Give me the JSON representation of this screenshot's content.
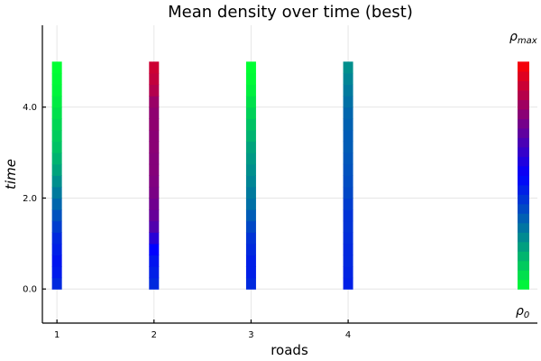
{
  "chart_data": {
    "type": "heatmap",
    "title": "Mean density over time (best)",
    "xlabel": "roads",
    "ylabel": "time",
    "x_ticks": [
      "1",
      "2",
      "3",
      "4"
    ],
    "y_ticks": [
      "0.0",
      "2.0",
      "4.0"
    ],
    "ylim": [
      -0.75,
      5.8
    ],
    "xlim": [
      0.85,
      5.95
    ],
    "time_range": [
      0,
      5
    ],
    "grid": true,
    "colorbar": {
      "min_label": "ρ",
      "min_sub": "0",
      "max_label": "ρ",
      "max_sub": "max",
      "min_color": "#00ff33",
      "mid_color": "#0000ff",
      "max_color": "#ff0000"
    },
    "roads": [
      {
        "x": 1,
        "density": [
          0.42,
          0.45,
          0.46,
          0.44,
          0.42,
          0.38,
          0.34,
          0.3,
          0.26,
          0.22,
          0.18,
          0.15,
          0.12,
          0.1,
          0.08,
          0.06,
          0.04,
          0.02,
          0.01,
          0.0
        ]
      },
      {
        "x": 2,
        "density": [
          0.42,
          0.44,
          0.46,
          0.5,
          0.58,
          0.66,
          0.7,
          0.72,
          0.74,
          0.75,
          0.76,
          0.76,
          0.77,
          0.77,
          0.78,
          0.78,
          0.8,
          0.85,
          0.88,
          0.9
        ]
      },
      {
        "x": 3,
        "density": [
          0.42,
          0.44,
          0.44,
          0.42,
          0.4,
          0.36,
          0.32,
          0.28,
          0.26,
          0.24,
          0.22,
          0.2,
          0.18,
          0.15,
          0.12,
          0.09,
          0.06,
          0.03,
          0.01,
          0.0
        ]
      },
      {
        "x": 4,
        "density": [
          0.44,
          0.43,
          0.42,
          0.42,
          0.41,
          0.4,
          0.4,
          0.38,
          0.36,
          0.35,
          0.34,
          0.33,
          0.32,
          0.32,
          0.31,
          0.3,
          0.28,
          0.26,
          0.24,
          0.22
        ]
      }
    ]
  }
}
